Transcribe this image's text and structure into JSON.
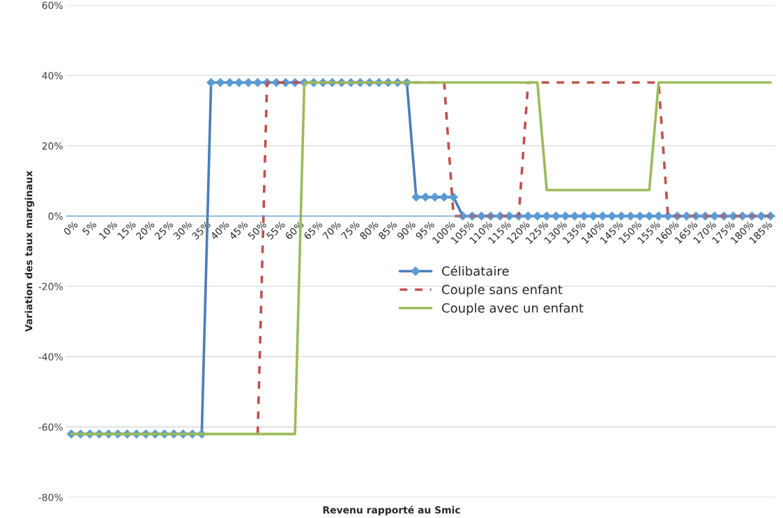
{
  "chart_data": {
    "type": "line",
    "xlabel": "Revenu rapporté au Smic",
    "ylabel": "Variation des taux marginaux",
    "categories": [
      "0%",
      null,
      "5%",
      null,
      "10%",
      null,
      "15%",
      null,
      "20%",
      null,
      "25%",
      null,
      "30%",
      null,
      "35%",
      null,
      "40%",
      null,
      "45%",
      null,
      "50%",
      null,
      "55%",
      null,
      "60%",
      null,
      "65%",
      null,
      "70%",
      null,
      "75%",
      null,
      "80%",
      null,
      "85%",
      null,
      "90%",
      null,
      "95%",
      null,
      "100%",
      null,
      "105%",
      null,
      "110%",
      null,
      "115%",
      null,
      "120%",
      null,
      "125%",
      null,
      "130%",
      null,
      "135%",
      null,
      "140%",
      null,
      "145%",
      null,
      "150%",
      null,
      "155%",
      null,
      "160%",
      null,
      "165%",
      null,
      "170%",
      null,
      "175%",
      null,
      "180%",
      null,
      "185%",
      null
    ],
    "series": [
      {
        "name": "Célibataire",
        "color": "#4a7ebb",
        "marker": "diamond",
        "line_style": "solid",
        "values": [
          -62,
          -62,
          -62,
          -62,
          -62,
          -62,
          -62,
          -62,
          -62,
          -62,
          -62,
          -62,
          -62,
          -62,
          -62,
          38,
          38,
          38,
          38,
          38,
          38,
          38,
          38,
          38,
          38,
          38,
          38,
          38,
          38,
          38,
          38,
          38,
          38,
          38,
          38,
          38,
          38,
          5.4,
          5.4,
          5.4,
          5.4,
          5.4,
          0,
          0,
          0,
          0,
          0,
          0,
          0,
          0,
          0,
          0,
          0,
          0,
          0,
          0,
          0,
          0,
          0,
          0,
          0,
          0,
          0,
          0,
          0,
          0,
          0,
          0,
          0,
          0,
          0,
          0,
          0,
          0,
          0,
          0
        ]
      },
      {
        "name": "Couple sans enfant",
        "color": "#c0504d",
        "marker": "none",
        "line_style": "dashed",
        "values": [
          null,
          null,
          null,
          null,
          null,
          null,
          null,
          null,
          null,
          null,
          null,
          null,
          null,
          null,
          null,
          null,
          null,
          null,
          null,
          null,
          -62,
          38,
          38,
          38,
          38,
          38,
          38,
          38,
          38,
          38,
          38,
          38,
          38,
          38,
          38,
          38,
          38,
          38,
          38,
          38,
          38,
          0,
          0,
          0,
          0,
          0,
          0,
          0,
          0,
          38,
          38,
          38,
          38,
          38,
          38,
          38,
          38,
          38,
          38,
          38,
          38,
          38,
          38,
          38,
          0,
          0,
          0,
          0,
          0,
          0,
          0,
          0,
          0,
          0,
          0,
          0
        ]
      },
      {
        "name": "Couple avec un enfant",
        "color": "#9bbb59",
        "marker": "none",
        "line_style": "solid",
        "values": [
          -62,
          -62,
          -62,
          -62,
          -62,
          -62,
          -62,
          -62,
          -62,
          -62,
          -62,
          -62,
          -62,
          -62,
          -62,
          -62,
          -62,
          -62,
          -62,
          -62,
          -62,
          -62,
          -62,
          -62,
          -62,
          38,
          38,
          38,
          38,
          38,
          38,
          38,
          38,
          38,
          38,
          38,
          38,
          38,
          38,
          38,
          38,
          38,
          38,
          38,
          38,
          38,
          38,
          38,
          38,
          38,
          38,
          7.4,
          7.4,
          7.4,
          7.4,
          7.4,
          7.4,
          7.4,
          7.4,
          7.4,
          7.4,
          7.4,
          7.4,
          38,
          38,
          38,
          38,
          38,
          38,
          38,
          38,
          38,
          38,
          38,
          38,
          38
        ]
      }
    ],
    "ylim": [
      -80,
      60
    ],
    "yticks": [
      {
        "value": -80,
        "label": "-80%"
      },
      {
        "value": -60,
        "label": "-60%"
      },
      {
        "value": -40,
        "label": "-40%"
      },
      {
        "value": -20,
        "label": "-20%"
      },
      {
        "value": 0,
        "label": "0%"
      },
      {
        "value": 20,
        "label": "20%"
      },
      {
        "value": 40,
        "label": "40%"
      },
      {
        "value": 60,
        "label": "60%"
      }
    ],
    "grid": "y",
    "legend": "center"
  }
}
